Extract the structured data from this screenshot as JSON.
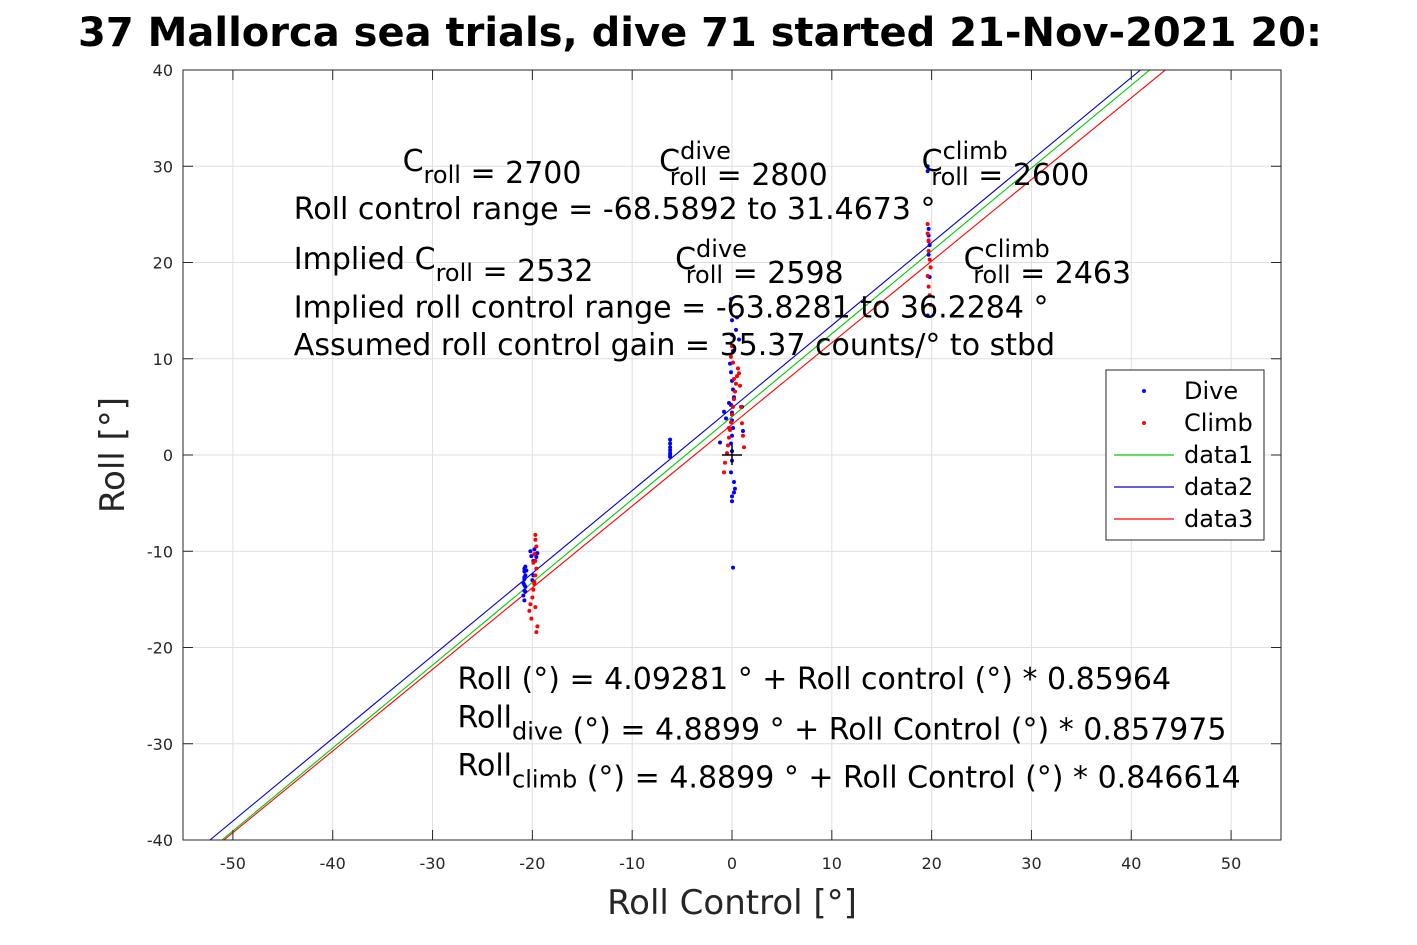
{
  "chart_data": {
    "type": "scatter",
    "title": "37 Mallorca sea trials, dive 71 started 21-Nov-2021 20:",
    "xlabel": "Roll Control [°]",
    "ylabel": "Roll [°]",
    "xlim": [
      -55,
      55
    ],
    "ylim": [
      -40,
      40
    ],
    "x_ticks": [
      -50,
      -40,
      -30,
      -20,
      -10,
      0,
      10,
      20,
      30,
      40,
      50
    ],
    "y_ticks": [
      -40,
      -30,
      -20,
      -10,
      0,
      10,
      20,
      30,
      40
    ],
    "grid": true,
    "legend_position": "right",
    "series": [
      {
        "name": "Dive",
        "kind": "points",
        "color": "#0000ff",
        "x": [
          -20.8,
          -20.8,
          -20.7,
          -20.8,
          -20.9,
          -20.7,
          -20.8,
          -20.9,
          -20.8,
          -20.7,
          -20.6,
          -20.8,
          -20.8,
          -20.7,
          -20.2,
          -20.1,
          -19.9,
          -19.8,
          -19.7,
          -19.6,
          -19.5,
          -19.9,
          -20.0,
          -6.2,
          -6.2,
          -6.2,
          -6.2,
          -6.2,
          -6.2,
          -6.2,
          -0.1,
          0.0,
          0.0,
          0.1,
          -0.2,
          -0.1,
          0.0,
          0.1,
          0.2,
          -0.1,
          0.0,
          0.0,
          0.1,
          0.0,
          -0.1,
          0.0,
          0.0,
          -0.1,
          0.2,
          0.3,
          0.4,
          0.5,
          0.7,
          1.0,
          1.1,
          -1.2,
          -0.8,
          -0.6,
          -0.3,
          0.0,
          0.0,
          0.1,
          0.2,
          19.6,
          19.6,
          19.7,
          19.8,
          19.7,
          19.8,
          19.6,
          19.7
        ],
        "y": [
          -11.8,
          -12.1,
          -12.5,
          -12.9,
          -13.3,
          -13.7,
          -14.1,
          -14.6,
          -15.1,
          -11.6,
          -12.0,
          -12.7,
          -13.5,
          -14.2,
          -10.0,
          -10.5,
          -11.0,
          -9.8,
          -10.3,
          -10.6,
          -10.2,
          -12.5,
          -13.0,
          1.6,
          1.2,
          0.8,
          0.5,
          0.2,
          0.0,
          -0.2,
          16.2,
          14.0,
          12.5,
          10.8,
          9.5,
          8.6,
          7.7,
          6.8,
          6.0,
          5.2,
          4.4,
          3.6,
          2.8,
          2.0,
          1.2,
          0.4,
          -0.6,
          -1.8,
          -2.8,
          -3.5,
          13.0,
          14.3,
          12.0,
          5.0,
          2.5,
          1.3,
          4.5,
          3.8,
          5.4,
          -4.3,
          -4.8,
          -11.7,
          -3.9,
          30.0,
          29.5,
          23.5,
          21.8,
          20.8,
          18.5,
          14.5,
          22.8
        ]
      },
      {
        "name": "Climb",
        "kind": "points",
        "color": "#ff0000",
        "x": [
          -19.7,
          -19.7,
          -19.6,
          -19.8,
          -19.7,
          -19.6,
          -19.7,
          -19.8,
          -19.9,
          -20.0,
          -20.2,
          -20.3,
          -20.1,
          -19.5,
          -19.6,
          -19.7,
          -19.8,
          -19.9,
          -0.8,
          -0.7,
          -0.5,
          -0.4,
          -0.3,
          -0.2,
          -0.1,
          0.0,
          0.1,
          0.2,
          0.3,
          0.4,
          0.5,
          0.6,
          0.7,
          0.8,
          0.9,
          1.0,
          1.1,
          1.2,
          0.0,
          -0.1,
          0.1,
          0.2,
          -0.3,
          19.6,
          19.6,
          19.7,
          19.7,
          19.8,
          19.9,
          19.6,
          19.7,
          19.8,
          19.9,
          19.7
        ],
        "y": [
          -8.3,
          -8.8,
          -9.5,
          -10.3,
          -11.0,
          -11.8,
          -12.5,
          -13.2,
          -14.0,
          -14.8,
          -15.5,
          -16.2,
          -17.0,
          -17.8,
          -18.4,
          -15.8,
          -13.4,
          -11.2,
          -1.8,
          -0.8,
          0.2,
          1.0,
          1.8,
          2.6,
          3.4,
          4.2,
          5.0,
          5.8,
          6.6,
          7.4,
          8.2,
          9.0,
          8.5,
          7.2,
          5.0,
          3.3,
          2.0,
          0.8,
          11.3,
          10.2,
          9.6,
          7.9,
          2.8,
          24.0,
          23.0,
          22.3,
          21.2,
          20.3,
          19.5,
          18.6,
          17.5,
          16.6,
          15.6,
          22.2
        ]
      },
      {
        "name": "data1",
        "kind": "line",
        "color": "#00cc00",
        "x": [
          -51.1,
          43.0
        ],
        "y": [
          -40.0,
          41.0
        ]
      },
      {
        "name": "data2",
        "kind": "line",
        "color": "#0000cc",
        "x": [
          -52.3,
          41.5
        ],
        "y": [
          -40.0,
          40.5
        ]
      },
      {
        "name": "data3",
        "kind": "line",
        "color": "#ff0000",
        "x": [
          -50.9,
          44.0
        ],
        "y": [
          -40.0,
          40.5
        ]
      }
    ],
    "origin_marker": {
      "x": 0,
      "y": 0
    },
    "annotations": [
      {
        "id": "c-roll",
        "data_xy": [
          -33,
          29.5
        ],
        "parts": [
          {
            "t": "C"
          },
          {
            "t": "roll",
            "sub": true
          },
          {
            "t": " = 2700"
          }
        ]
      },
      {
        "id": "c-roll-dive",
        "data_xy": [
          -7.3,
          29.5
        ],
        "parts": [
          {
            "t": "C"
          },
          {
            "t": "dive",
            "sup": true,
            "t2": "roll"
          },
          {
            "t": " = 2800"
          }
        ]
      },
      {
        "id": "c-roll-climb",
        "data_xy": [
          19,
          29.5
        ],
        "parts": [
          {
            "t": "C"
          },
          {
            "t": "climb",
            "sup": true,
            "t2": "roll"
          },
          {
            "t": " = 2600"
          }
        ]
      },
      {
        "id": "roll-control-range",
        "data_xy": [
          -43.9,
          24.5
        ],
        "parts": [
          {
            "t": "Roll control range = -68.5892 to 31.4673 °"
          }
        ]
      },
      {
        "id": "implied-c-roll",
        "data_xy": [
          -43.9,
          19.3
        ],
        "parts": [
          {
            "t": "Implied C"
          },
          {
            "t": "roll",
            "sub": true
          },
          {
            "t": " = 2532"
          }
        ]
      },
      {
        "id": "implied-c-roll-dive",
        "data_xy": [
          -5.7,
          19.3
        ],
        "parts": [
          {
            "t": "C"
          },
          {
            "t": "dive",
            "sup": true,
            "t2": "roll"
          },
          {
            "t": " = 2598"
          }
        ]
      },
      {
        "id": "implied-c-roll-climb",
        "data_xy": [
          23.2,
          19.3
        ],
        "parts": [
          {
            "t": "C"
          },
          {
            "t": "climb",
            "sup": true,
            "t2": "roll"
          },
          {
            "t": " = 2463"
          }
        ]
      },
      {
        "id": "implied-roll-control-range",
        "data_xy": [
          -43.9,
          14.3
        ],
        "parts": [
          {
            "t": "Implied roll control range = -63.8281 to 36.2284 °"
          }
        ]
      },
      {
        "id": "assumed-gain",
        "data_xy": [
          -43.9,
          10.4
        ],
        "parts": [
          {
            "t": "Assumed roll control gain = 35.37 counts/° to stbd"
          }
        ]
      },
      {
        "id": "fit-all",
        "data_xy": [
          -27.5,
          -24.3
        ],
        "parts": [
          {
            "t": "Roll (°) = 4.09281 ° + Roll control (°) * 0.85964"
          }
        ]
      },
      {
        "id": "fit-dive",
        "data_xy": [
          -27.5,
          -28.3
        ],
        "parts": [
          {
            "t": "Roll"
          },
          {
            "t": "dive",
            "sub": true
          },
          {
            "t": " (°) = 4.8899 ° + Roll Control (°) * 0.857975"
          }
        ]
      },
      {
        "id": "fit-climb",
        "data_xy": [
          -27.5,
          -33.3
        ],
        "parts": [
          {
            "t": "Roll"
          },
          {
            "t": "climb",
            "sub": true
          },
          {
            "t": " (°) = 4.8899 ° + Roll Control (°) * 0.846614"
          }
        ]
      }
    ]
  }
}
